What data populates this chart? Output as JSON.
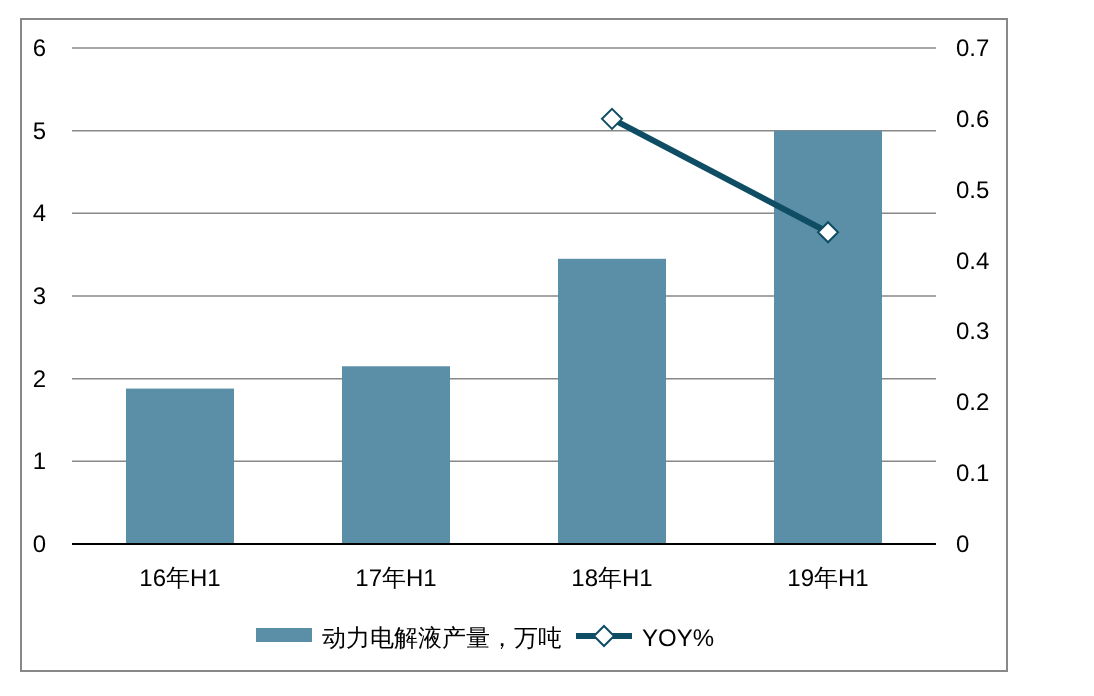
{
  "chart_data": {
    "type": "bar",
    "categories": [
      "16年H1",
      "17年H1",
      "18年H1",
      "19年H1"
    ],
    "series": [
      {
        "name": "动力电解液产量，万吨",
        "color": "#5b8fa8",
        "values": [
          1.88,
          2.15,
          3.45,
          5.0
        ]
      },
      {
        "name": "YOY%",
        "type": "line",
        "axis": "y2",
        "color": "#0e4d64",
        "values": [
          null,
          null,
          0.6,
          0.44
        ],
        "marker": "diamond"
      }
    ],
    "ylim": [
      0,
      6
    ],
    "yticks": [
      0,
      1,
      2,
      3,
      4,
      5,
      6
    ],
    "y2lim": [
      0,
      0.7
    ],
    "y2ticks": [
      0,
      0.1,
      0.2,
      0.3,
      0.4,
      0.5,
      0.6,
      0.7
    ],
    "grid": "y",
    "legend": "bottom"
  }
}
